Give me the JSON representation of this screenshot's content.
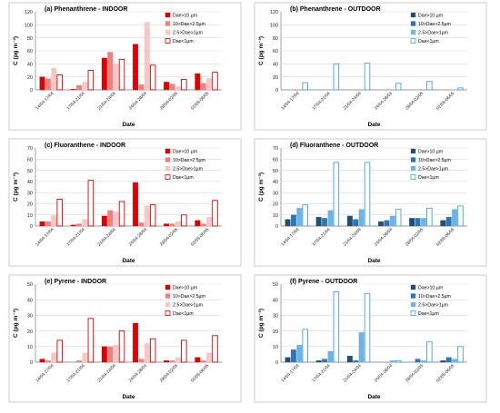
{
  "chart_data": [
    {
      "type": "bar",
      "title": "(a) Phenanthrene - INDOOR",
      "xlabel": "Date",
      "ylabel": "C (pg m⁻³)",
      "ylim": [
        0,
        120
      ],
      "yticks": [
        0,
        20,
        40,
        60,
        80,
        100,
        120
      ],
      "categories": [
        "14/04-17/04",
        "17/04-21/04",
        "21/04-24/04",
        "24/04-28/04",
        "28/04-02/05",
        "02/05-06/05"
      ],
      "series": [
        {
          "name": "Dae>10 µm",
          "color": "#e00000",
          "hollow": false,
          "values": [
            20,
            1,
            49,
            70,
            12,
            25
          ]
        },
        {
          "name": "10>Dae>2.5µm",
          "color": "#f08080",
          "hollow": false,
          "values": [
            17,
            7,
            58,
            8,
            9,
            10
          ]
        },
        {
          "name": "2.5>Dae>1µm",
          "color": "#f9c6c6",
          "hollow": false,
          "values": [
            33,
            12,
            40,
            104,
            5,
            18
          ]
        },
        {
          "name": "Dae<1µm",
          "color": "#e00000",
          "hollow": true,
          "values": [
            23,
            30,
            47,
            38,
            16,
            27
          ]
        }
      ],
      "legend": "top-right"
    },
    {
      "type": "bar",
      "title": "(b) Phenanthrene - OUTDOOR",
      "xlabel": "Date",
      "ylabel": "C (pg m⁻³)",
      "ylim": [
        0,
        120
      ],
      "yticks": [
        0,
        20,
        40,
        60,
        80,
        100,
        120
      ],
      "categories": [
        "14/04-17/04",
        "17/04-21/04",
        "21/04-24/04",
        "24/04-28/04",
        "28/04-02/05",
        "02/05-06/05"
      ],
      "series": [
        {
          "name": "Dae>10 µm",
          "color": "#1f4e79",
          "hollow": false,
          "values": [
            0,
            0,
            0,
            0,
            0,
            0
          ]
        },
        {
          "name": "10>Dae>2.5µm",
          "color": "#2e75b6",
          "hollow": false,
          "values": [
            0,
            0,
            0,
            0,
            0,
            0
          ]
        },
        {
          "name": "2.5>Dae>1µm",
          "color": "#6cb4e8",
          "hollow": false,
          "values": [
            0,
            0,
            0,
            0,
            0,
            0
          ]
        },
        {
          "name": "Dae<1µm",
          "color": "#4a9fd8",
          "hollow": true,
          "values": [
            11,
            40,
            41,
            10,
            13,
            3
          ]
        }
      ],
      "legend": "top-right"
    },
    {
      "type": "bar",
      "title": "(c) Fluoranthene - INDOOR",
      "xlabel": "Date",
      "ylabel": "C (pg m⁻³)",
      "ylim": [
        0,
        70
      ],
      "yticks": [
        0,
        10,
        20,
        30,
        40,
        50,
        60,
        70
      ],
      "categories": [
        "14/04-17/04",
        "17/04-21/04",
        "21/04-24/04",
        "24/04-28/04",
        "28/04-02/05",
        "02/05-06/05"
      ],
      "series": [
        {
          "name": "Dae>10 µm",
          "color": "#e00000",
          "hollow": false,
          "values": [
            4,
            1,
            9,
            39,
            2,
            5
          ]
        },
        {
          "name": "10>Dae>2.5µm",
          "color": "#f08080",
          "hollow": false,
          "values": [
            4,
            2,
            14,
            3,
            2,
            2
          ]
        },
        {
          "name": "2.5>Dae>1µm",
          "color": "#f9c6c6",
          "hollow": false,
          "values": [
            10,
            6,
            13,
            18,
            4,
            8
          ]
        },
        {
          "name": "Dae<1µm",
          "color": "#e00000",
          "hollow": true,
          "values": [
            24,
            41,
            22,
            19,
            10,
            23
          ]
        }
      ],
      "legend": "top-right"
    },
    {
      "type": "bar",
      "title": "(d) Fluoranthene - OUTDOOR",
      "xlabel": "Date",
      "ylabel": "C (pg m⁻³)",
      "ylim": [
        0,
        70
      ],
      "yticks": [
        0,
        10,
        20,
        30,
        40,
        50,
        60,
        70
      ],
      "categories": [
        "14/04-17/04",
        "17/04-21/04",
        "21/04-24/04",
        "24/04-28/04",
        "28/04-02/05",
        "02/05-06/05"
      ],
      "series": [
        {
          "name": "Dae>10 µm",
          "color": "#1f4e79",
          "hollow": false,
          "values": [
            6,
            8,
            9,
            4,
            7,
            5
          ]
        },
        {
          "name": "10>Dae>2.5µm",
          "color": "#2e75b6",
          "hollow": false,
          "values": [
            10,
            7,
            6,
            5,
            7,
            8
          ]
        },
        {
          "name": "2.5>Dae>1µm",
          "color": "#6cb4e8",
          "hollow": false,
          "values": [
            16,
            14,
            15,
            9,
            7,
            15
          ]
        },
        {
          "name": "Dae<1µm",
          "color": "#4a9fd8",
          "hollow": true,
          "values": [
            19,
            57,
            57,
            15,
            16,
            18
          ]
        }
      ],
      "legend": "top-right"
    },
    {
      "type": "bar",
      "title": "(e) Pyrene - INDOOR",
      "xlabel": "Date",
      "ylabel": "C (pg m⁻³)",
      "ylim": [
        0,
        50
      ],
      "yticks": [
        0,
        10,
        20,
        30,
        40,
        50
      ],
      "categories": [
        "14/04-17/04",
        "17/04-21/04",
        "21/04-24/04",
        "24/04-28/04",
        "28/04-02/05",
        "02/05-06/05"
      ],
      "series": [
        {
          "name": "Dae>10 µm",
          "color": "#e00000",
          "hollow": false,
          "values": [
            2,
            0,
            10,
            25,
            1,
            3
          ]
        },
        {
          "name": "10>Dae>2.5µm",
          "color": "#f08080",
          "hollow": false,
          "values": [
            1,
            1,
            10,
            2,
            1,
            1
          ]
        },
        {
          "name": "2.5>Dae>1µm",
          "color": "#f9c6c6",
          "hollow": false,
          "values": [
            6,
            6,
            11,
            12,
            3,
            6
          ]
        },
        {
          "name": "Dae<1µm",
          "color": "#e00000",
          "hollow": true,
          "values": [
            14,
            28,
            20,
            15,
            14,
            17
          ]
        }
      ],
      "legend": "top-right"
    },
    {
      "type": "bar",
      "title": "(f) Pyrene - OUTDOOR",
      "xlabel": "Date",
      "ylabel": "C (pg m⁻³)",
      "ylim": [
        0,
        50
      ],
      "yticks": [
        0,
        10,
        20,
        30,
        40,
        50
      ],
      "categories": [
        "14/04-17/04",
        "17/04-21/04",
        "21/04-24/04",
        "24/04-28/04",
        "28/04-02/05",
        "02/05-06/05"
      ],
      "series": [
        {
          "name": "Dae>10 µm",
          "color": "#1f4e79",
          "hollow": false,
          "values": [
            3,
            1,
            4,
            0,
            0,
            1
          ]
        },
        {
          "name": "10>Dae>2.5µm",
          "color": "#2e75b6",
          "hollow": false,
          "values": [
            8,
            2,
            1,
            0,
            2,
            3
          ]
        },
        {
          "name": "2.5>Dae>1µm",
          "color": "#6cb4e8",
          "hollow": false,
          "values": [
            11,
            7,
            19,
            1,
            1,
            2
          ]
        },
        {
          "name": "Dae<1µm",
          "color": "#4a9fd8",
          "hollow": true,
          "values": [
            21,
            45,
            44,
            1,
            13,
            10
          ]
        }
      ],
      "legend": "top-right"
    }
  ]
}
